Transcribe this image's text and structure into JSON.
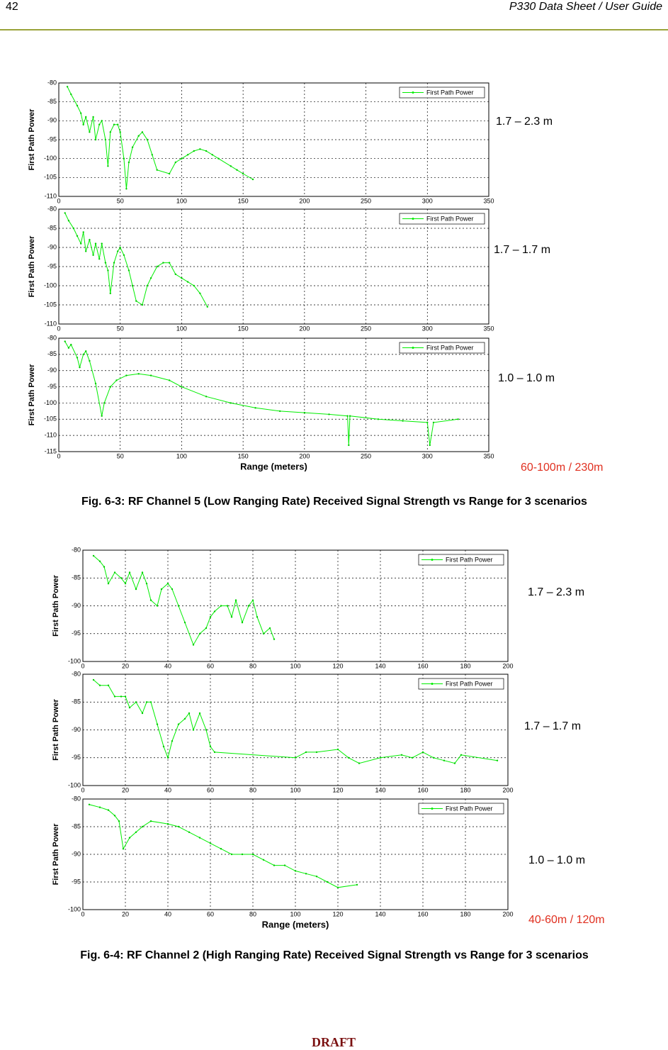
{
  "header": {
    "page": "42",
    "title": "P330 Data Sheet / User Guide"
  },
  "figures": [
    {
      "caption": "Fig. 6-3: RF Channel 5 (Low Ranging Rate) Received Signal Strength vs Range for 3 scenarios",
      "annotations": [
        "1.7 – 2.3 m",
        "1.7 – 1.7 m",
        "1.0 – 1.0 m",
        "60-100m / 230m"
      ],
      "charts": [
        {
          "type": "line",
          "ylabel": "First Path Power",
          "xlim": [
            0,
            350
          ],
          "xticks": [
            0,
            50,
            100,
            150,
            200,
            250,
            300,
            350
          ],
          "ylim": [
            -110,
            -80
          ],
          "yticks": [
            -80,
            -85,
            -90,
            -95,
            -100,
            -105,
            -110
          ],
          "grid": true,
          "legend": "upper right",
          "series": [
            {
              "name": "First Path Power",
              "color": "#00ee00",
              "x": [
                7,
                10,
                15,
                18,
                20,
                22,
                25,
                28,
                30,
                33,
                35,
                38,
                40,
                42,
                45,
                48,
                50,
                53,
                55,
                57,
                60,
                65,
                68,
                72,
                76,
                80,
                90,
                95,
                100,
                105,
                110,
                115,
                120,
                125,
                130,
                140,
                145,
                150,
                158
              ],
              "values": [
                -81,
                -83,
                -86,
                -88,
                -91,
                -89,
                -93,
                -89,
                -95,
                -91,
                -90,
                -95,
                -102,
                -93,
                -91,
                -91,
                -93,
                -100,
                -108,
                -101,
                -97,
                -94,
                -93,
                -95,
                -99,
                -103,
                -104,
                -101,
                -100,
                -99,
                -98,
                -97.5,
                -98,
                -99,
                -100,
                -102,
                -103,
                -104,
                -105.5
              ]
            }
          ]
        },
        {
          "type": "line",
          "ylabel": "First Path Power",
          "xlim": [
            0,
            350
          ],
          "xticks": [
            0,
            50,
            100,
            150,
            200,
            250,
            300,
            350
          ],
          "ylim": [
            -110,
            -80
          ],
          "yticks": [
            -80,
            -85,
            -90,
            -95,
            -100,
            -105,
            -110
          ],
          "grid": true,
          "legend": "upper right",
          "series": [
            {
              "name": "First Path Power",
              "color": "#00ee00",
              "x": [
                5,
                8,
                12,
                15,
                18,
                20,
                22,
                25,
                28,
                30,
                33,
                35,
                38,
                40,
                42,
                45,
                48,
                50,
                53,
                57,
                60,
                63,
                68,
                72,
                75,
                80,
                85,
                90,
                95,
                100,
                105,
                110,
                115,
                121
              ],
              "values": [
                -81,
                -83,
                -85,
                -87,
                -89,
                -86,
                -91,
                -88,
                -92,
                -89,
                -93,
                -89,
                -94,
                -96,
                -102,
                -94,
                -91,
                -90,
                -92,
                -96,
                -100,
                -104,
                -105,
                -100,
                -98,
                -95,
                -94,
                -94,
                -97,
                -98,
                -99,
                -100,
                -102,
                -105.5
              ]
            }
          ]
        },
        {
          "type": "line",
          "ylabel": "First Path Power",
          "xlabel": "Range (meters)",
          "xlim": [
            0,
            350
          ],
          "xticks": [
            0,
            50,
            100,
            150,
            200,
            250,
            300,
            350
          ],
          "ylim": [
            -115,
            -80
          ],
          "yticks": [
            -80,
            -85,
            -90,
            -95,
            -100,
            -105,
            -110,
            -115
          ],
          "grid": true,
          "legend": "upper right",
          "series": [
            {
              "name": "First Path Power",
              "color": "#00ee00",
              "x": [
                5,
                8,
                10,
                15,
                17,
                20,
                22,
                25,
                30,
                35,
                37,
                42,
                47,
                55,
                65,
                75,
                90,
                100,
                120,
                140,
                160,
                180,
                200,
                220,
                235,
                236,
                237,
                260,
                280,
                300,
                302,
                305,
                325
              ],
              "values": [
                -81,
                -83,
                -82,
                -86,
                -89,
                -85,
                -84,
                -87,
                -94,
                -104,
                -100,
                -95,
                -93,
                -91.5,
                -91,
                -91.5,
                -93,
                -95,
                -98,
                -100,
                -101.5,
                -102.5,
                -103,
                -103.5,
                -104,
                -113,
                -104,
                -105,
                -105.5,
                -106,
                -113,
                -106,
                -105
              ]
            }
          ]
        }
      ]
    },
    {
      "caption": "Fig. 6-4: RF Channel 2 (High Ranging Rate) Received Signal Strength vs Range for 3 scenarios",
      "annotations": [
        "1.7 – 2.3 m",
        "1.7 – 1.7 m",
        "1.0 – 1.0 m",
        "40-60m / 120m"
      ],
      "charts": [
        {
          "type": "line",
          "ylabel": "First Path Power",
          "xlim": [
            0,
            200
          ],
          "xticks": [
            0,
            20,
            40,
            60,
            80,
            100,
            120,
            140,
            160,
            180,
            200
          ],
          "ylim": [
            -100,
            -80
          ],
          "yticks": [
            -80,
            -85,
            -90,
            -95,
            -100
          ],
          "grid": true,
          "legend": "upper right",
          "series": [
            {
              "name": "First Path Power",
              "color": "#00ee00",
              "x": [
                5,
                8,
                10,
                12,
                15,
                18,
                20,
                22,
                25,
                28,
                30,
                32,
                35,
                37,
                40,
                42,
                45,
                48,
                52,
                55,
                58,
                60,
                62,
                65,
                68,
                70,
                72,
                75,
                78,
                80,
                82,
                85,
                88,
                90
              ],
              "values": [
                -81,
                -82,
                -83,
                -86,
                -84,
                -85,
                -86,
                -84,
                -87,
                -84,
                -86,
                -89,
                -90,
                -87,
                -86,
                -87,
                -90,
                -93,
                -97,
                -95,
                -94,
                -92,
                -91,
                -90,
                -90,
                -92,
                -89,
                -93,
                -90,
                -89,
                -92,
                -95,
                -94,
                -96
              ]
            }
          ]
        },
        {
          "type": "line",
          "ylabel": "First Path Power",
          "xlim": [
            0,
            200
          ],
          "xticks": [
            0,
            20,
            40,
            60,
            80,
            100,
            120,
            140,
            160,
            180,
            200
          ],
          "ylim": [
            -100,
            -80
          ],
          "yticks": [
            -80,
            -85,
            -90,
            -95,
            -100
          ],
          "grid": true,
          "legend": "upper right",
          "series": [
            {
              "name": "First Path Power",
              "color": "#00ee00",
              "x": [
                5,
                8,
                12,
                15,
                18,
                20,
                22,
                25,
                28,
                30,
                32,
                35,
                38,
                40,
                42,
                45,
                48,
                50,
                52,
                55,
                58,
                60,
                62,
                100,
                105,
                110,
                120,
                125,
                130,
                140,
                150,
                155,
                160,
                165,
                170,
                175,
                178,
                195
              ],
              "values": [
                -81,
                -82,
                -82,
                -84,
                -84,
                -84,
                -86,
                -85,
                -87,
                -85,
                -85,
                -89,
                -93,
                -95,
                -92,
                -89,
                -88,
                -87,
                -90,
                -87,
                -90,
                -93,
                -94,
                -95,
                -94,
                -94,
                -93.5,
                -95,
                -96,
                -95,
                -94.5,
                -95,
                -94,
                -95,
                -95.5,
                -96,
                -94.5,
                -95.5
              ]
            }
          ]
        },
        {
          "type": "line",
          "ylabel": "First Path Power",
          "xlabel": "Range (meters)",
          "xlim": [
            0,
            200
          ],
          "xticks": [
            0,
            20,
            40,
            60,
            80,
            100,
            120,
            140,
            160,
            180,
            200
          ],
          "ylim": [
            -100,
            -80
          ],
          "yticks": [
            -80,
            -85,
            -90,
            -95,
            -100
          ],
          "grid": true,
          "legend": "upper right",
          "series": [
            {
              "name": "First Path Power",
              "color": "#00ee00",
              "x": [
                3,
                8,
                12,
                15,
                17,
                19,
                22,
                25,
                28,
                32,
                40,
                45,
                50,
                55,
                60,
                65,
                70,
                75,
                80,
                85,
                90,
                95,
                100,
                105,
                110,
                115,
                120,
                129
              ],
              "values": [
                -81,
                -81.5,
                -82,
                -83,
                -84,
                -89,
                -87,
                -86,
                -85,
                -84,
                -84.5,
                -85,
                -86,
                -87,
                -88,
                -89,
                -90,
                -90,
                -90,
                -91,
                -92,
                -92,
                -93,
                -93.5,
                -94,
                -95,
                -96,
                -95.5
              ]
            }
          ]
        }
      ]
    }
  ],
  "footer": {
    "draft": "DRAFT"
  }
}
